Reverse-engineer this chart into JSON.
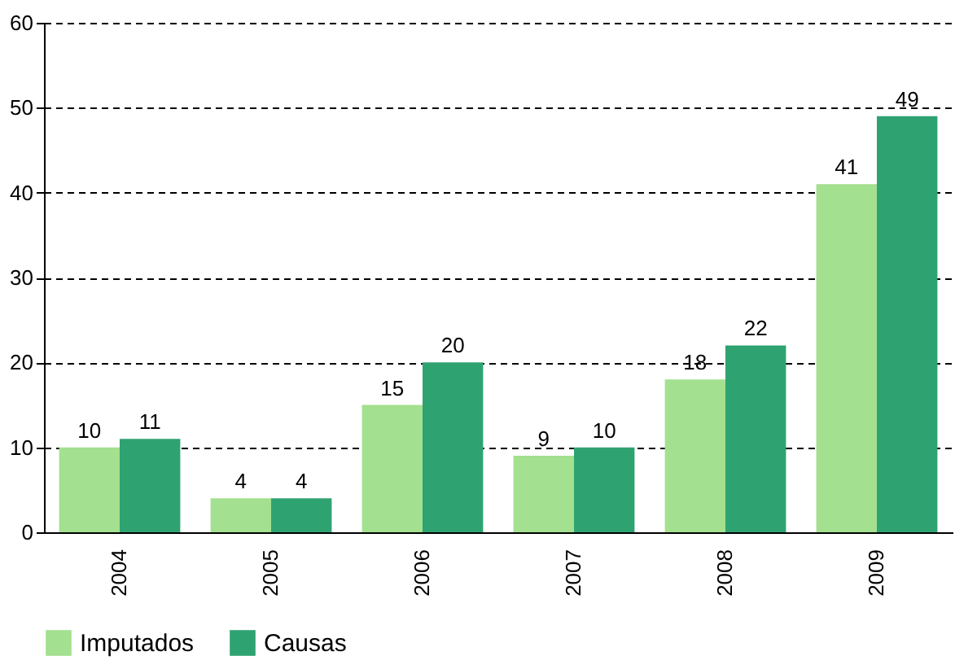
{
  "chart_data": {
    "type": "bar",
    "categories": [
      "2004",
      "2005",
      "2006",
      "2007",
      "2008",
      "2009"
    ],
    "series": [
      {
        "name": "Imputados",
        "color": "#a3e08f",
        "values": [
          10,
          4,
          15,
          9,
          18,
          41
        ]
      },
      {
        "name": "Causas",
        "color": "#2fa272",
        "values": [
          11,
          4,
          20,
          10,
          22,
          49
        ]
      }
    ],
    "ylim": [
      0,
      60
    ],
    "yticks": [
      0,
      10,
      20,
      30,
      40,
      50,
      60
    ],
    "grid": "y",
    "legend": "bottom",
    "data_labels": true
  }
}
